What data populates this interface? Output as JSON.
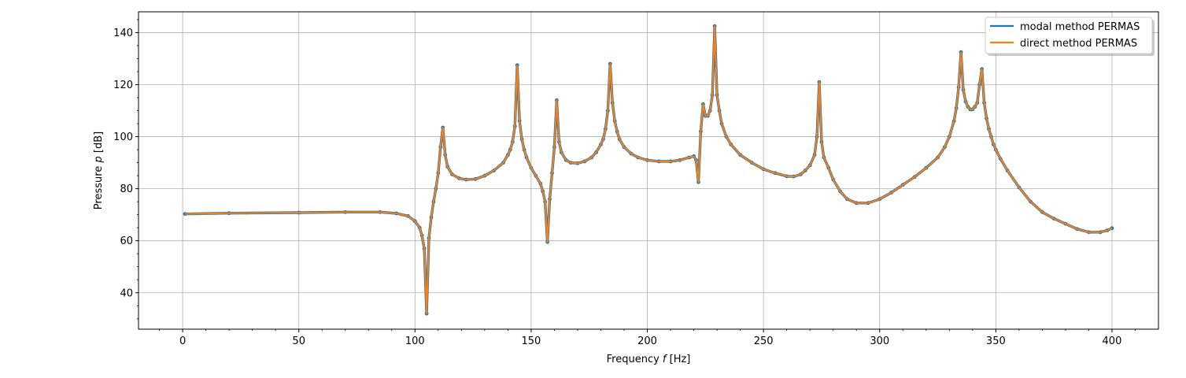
{
  "chart_data": {
    "type": "line",
    "title": "",
    "xlabel": {
      "prefix": "Frequency ",
      "var": "f",
      "suffix": " [Hz]"
    },
    "ylabel": {
      "prefix": "Pressure ",
      "var": "p",
      "suffix": " [dB]"
    },
    "xlim": [
      -19,
      420
    ],
    "ylim": [
      26,
      148
    ],
    "xticks": [
      0,
      50,
      100,
      150,
      200,
      250,
      300,
      350,
      400
    ],
    "yticks": [
      40,
      60,
      80,
      100,
      120,
      140
    ],
    "grid": true,
    "legend_position": "top-right",
    "series": [
      {
        "name": "modal method PERMAS",
        "color": "#1f77b4",
        "marker": "circle"
      },
      {
        "name": "direct method PERMAS",
        "color": "#ff7f0e",
        "marker": "none"
      }
    ],
    "curve_points": [
      [
        1,
        70.3
      ],
      [
        20,
        70.6
      ],
      [
        50,
        70.8
      ],
      [
        70,
        71.0
      ],
      [
        85,
        71.0
      ],
      [
        92,
        70.5
      ],
      [
        97,
        69.5
      ],
      [
        100,
        67.5
      ],
      [
        102,
        65
      ],
      [
        103,
        62
      ],
      [
        104,
        57
      ],
      [
        105,
        32
      ],
      [
        106,
        61
      ],
      [
        107,
        69
      ],
      [
        108,
        75
      ],
      [
        109,
        80
      ],
      [
        110,
        86
      ],
      [
        111,
        96
      ],
      [
        112,
        103.5
      ],
      [
        113,
        93
      ],
      [
        114,
        88.5
      ],
      [
        116,
        85.5
      ],
      [
        119,
        84
      ],
      [
        122,
        83.5
      ],
      [
        126,
        83.7
      ],
      [
        130,
        85
      ],
      [
        134,
        87
      ],
      [
        138,
        90
      ],
      [
        140,
        93
      ],
      [
        141,
        95
      ],
      [
        142,
        98
      ],
      [
        143,
        104
      ],
      [
        144,
        127.5
      ],
      [
        145,
        106
      ],
      [
        146,
        99
      ],
      [
        147,
        95
      ],
      [
        148,
        92
      ],
      [
        150,
        88
      ],
      [
        152,
        85
      ],
      [
        154,
        82
      ],
      [
        155,
        79
      ],
      [
        156,
        75
      ],
      [
        157,
        59.5
      ],
      [
        158,
        76
      ],
      [
        159,
        86
      ],
      [
        160,
        96
      ],
      [
        161,
        114
      ],
      [
        162,
        98
      ],
      [
        163,
        94
      ],
      [
        165,
        91
      ],
      [
        167,
        90
      ],
      [
        170,
        89.8
      ],
      [
        173,
        90.5
      ],
      [
        176,
        92
      ],
      [
        178,
        94
      ],
      [
        180,
        97
      ],
      [
        181,
        99
      ],
      [
        182,
        103
      ],
      [
        183,
        110
      ],
      [
        184,
        128
      ],
      [
        185,
        113
      ],
      [
        186,
        106
      ],
      [
        187,
        102
      ],
      [
        188,
        99
      ],
      [
        190,
        96
      ],
      [
        193,
        93.5
      ],
      [
        196,
        92
      ],
      [
        200,
        91
      ],
      [
        205,
        90.5
      ],
      [
        210,
        90.5
      ],
      [
        214,
        91
      ],
      [
        218,
        92
      ],
      [
        220,
        92.5
      ],
      [
        221,
        91
      ],
      [
        222,
        82.5
      ],
      [
        223,
        102
      ],
      [
        224,
        112.5
      ],
      [
        225,
        108
      ],
      [
        226,
        108
      ],
      [
        227,
        110
      ],
      [
        228,
        116
      ],
      [
        229,
        142.5
      ],
      [
        230,
        116
      ],
      [
        231,
        110
      ],
      [
        232,
        105
      ],
      [
        234,
        100
      ],
      [
        236,
        97
      ],
      [
        240,
        93
      ],
      [
        245,
        90
      ],
      [
        250,
        87.5
      ],
      [
        255,
        86
      ],
      [
        260,
        84.8
      ],
      [
        263,
        84.7
      ],
      [
        266,
        85.5
      ],
      [
        268,
        87
      ],
      [
        270,
        89
      ],
      [
        272,
        93
      ],
      [
        273,
        100
      ],
      [
        274,
        121
      ],
      [
        275,
        98
      ],
      [
        276,
        92
      ],
      [
        278,
        88
      ],
      [
        280,
        83.5
      ],
      [
        283,
        79
      ],
      [
        286,
        76
      ],
      [
        290,
        74.5
      ],
      [
        295,
        74.5
      ],
      [
        300,
        76
      ],
      [
        305,
        78.5
      ],
      [
        310,
        81.5
      ],
      [
        315,
        84.5
      ],
      [
        320,
        88
      ],
      [
        325,
        92
      ],
      [
        328,
        96
      ],
      [
        330,
        100
      ],
      [
        332,
        106
      ],
      [
        333,
        111
      ],
      [
        334,
        119
      ],
      [
        335,
        132.5
      ],
      [
        336,
        118
      ],
      [
        337,
        113.5
      ],
      [
        338,
        111.5
      ],
      [
        339,
        110.5
      ],
      [
        340,
        110.5
      ],
      [
        341,
        111.5
      ],
      [
        342,
        113
      ],
      [
        343,
        120
      ],
      [
        344,
        126
      ],
      [
        345,
        113
      ],
      [
        346,
        107
      ],
      [
        347,
        103
      ],
      [
        348,
        100
      ],
      [
        349,
        97
      ],
      [
        350,
        95
      ],
      [
        352,
        91.5
      ],
      [
        355,
        87
      ],
      [
        360,
        80.5
      ],
      [
        365,
        75
      ],
      [
        370,
        71
      ],
      [
        375,
        68.5
      ],
      [
        380,
        66.5
      ],
      [
        385,
        64.5
      ],
      [
        390,
        63.3
      ],
      [
        395,
        63.3
      ],
      [
        398,
        64
      ],
      [
        400,
        64.8
      ]
    ]
  }
}
